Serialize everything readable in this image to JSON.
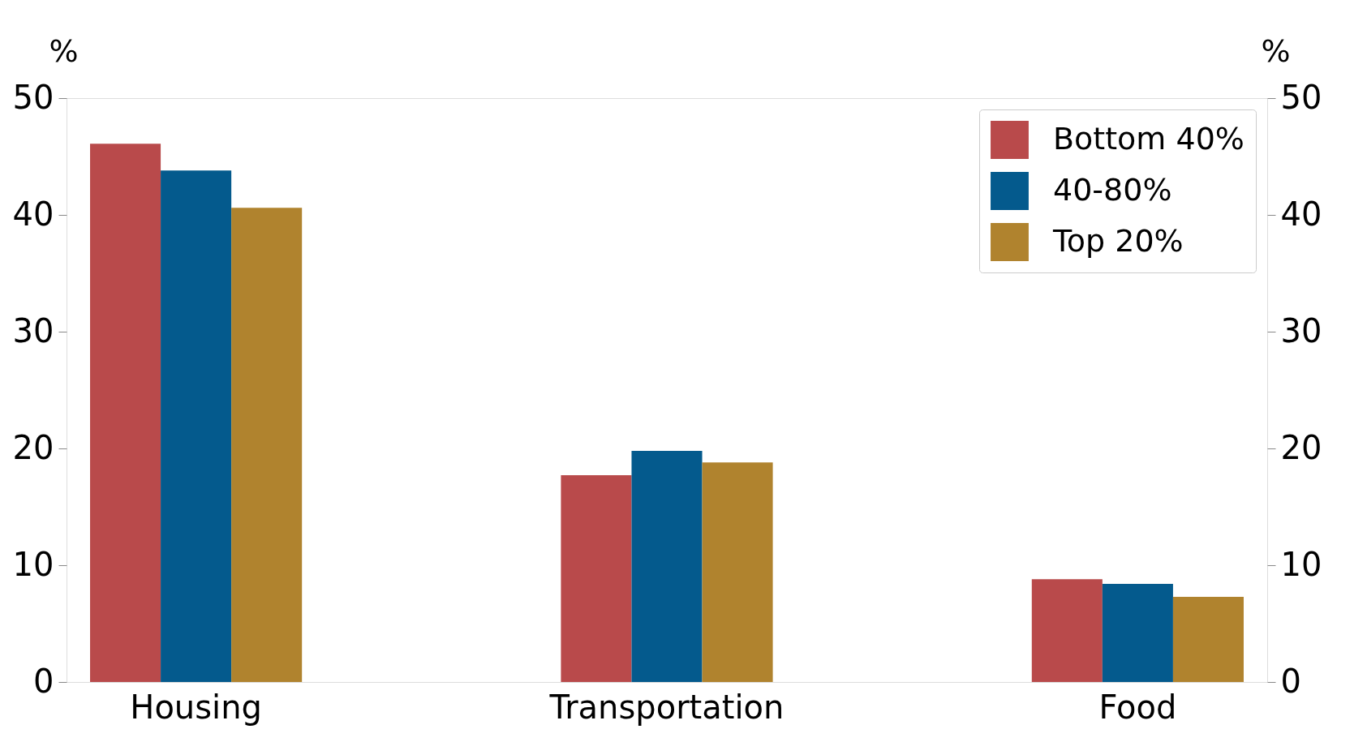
{
  "chart_data": {
    "type": "bar",
    "ylabel": "%",
    "y2label": "%",
    "categories": [
      "Housing",
      "Transportation",
      "Food"
    ],
    "series": [
      {
        "name": "Bottom 40%",
        "color": "#b94a4b",
        "values": [
          46.1,
          17.7,
          8.8
        ]
      },
      {
        "name": "40-80%",
        "color": "#045a8d",
        "values": [
          43.8,
          19.8,
          8.4
        ]
      },
      {
        "name": "Top 20%",
        "color": "#b0832e",
        "values": [
          40.6,
          18.8,
          7.3
        ]
      }
    ],
    "ylim": [
      0,
      50
    ],
    "yticks": [
      0,
      10,
      20,
      30,
      40,
      50
    ],
    "y2lim": [
      0,
      50
    ],
    "y2ticks": [
      0,
      10,
      20,
      30,
      40,
      50
    ],
    "legend": "top right",
    "grid": false
  }
}
